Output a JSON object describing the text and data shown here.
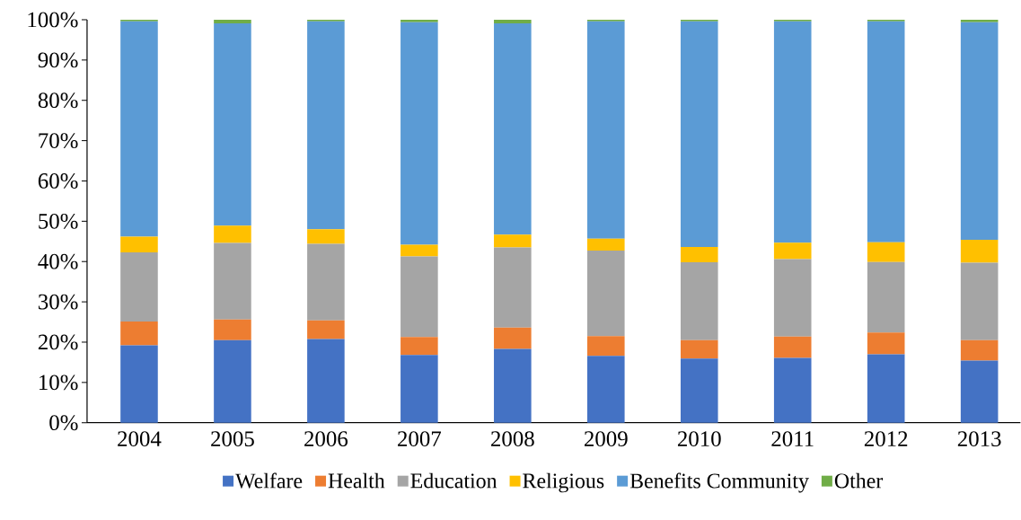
{
  "chart_data": {
    "type": "bar",
    "stacked": true,
    "legend": "bottom",
    "categories": [
      "2004",
      "2005",
      "2006",
      "2007",
      "2008",
      "2009",
      "2010",
      "2011",
      "2012",
      "2013"
    ],
    "ylim": [
      0,
      100
    ],
    "yticks": [
      {
        "value": 0,
        "label": "0%"
      },
      {
        "value": 10,
        "label": "10%"
      },
      {
        "value": 20,
        "label": "20%"
      },
      {
        "value": 30,
        "label": "30%"
      },
      {
        "value": 40,
        "label": "40%"
      },
      {
        "value": 50,
        "label": "50%"
      },
      {
        "value": 60,
        "label": "60%"
      },
      {
        "value": 70,
        "label": "70%"
      },
      {
        "value": 80,
        "label": "80%"
      },
      {
        "value": 90,
        "label": "90%"
      },
      {
        "value": 100,
        "label": "100%"
      }
    ],
    "series": [
      {
        "name": "Welfare",
        "color": "#4472c4",
        "values": [
          19.2,
          20.5,
          20.8,
          16.8,
          18.3,
          16.6,
          15.9,
          16.1,
          17.0,
          15.4
        ]
      },
      {
        "name": "Health",
        "color": "#ed7d31",
        "values": [
          5.9,
          5.1,
          4.6,
          4.5,
          5.3,
          4.9,
          4.6,
          5.3,
          5.4,
          5.1
        ]
      },
      {
        "name": "Education",
        "color": "#a5a5a5",
        "values": [
          17.2,
          19.0,
          19.0,
          20.0,
          19.9,
          21.2,
          19.3,
          19.2,
          17.5,
          19.2
        ]
      },
      {
        "name": "Religious",
        "color": "#ffc000",
        "values": [
          3.9,
          4.3,
          3.6,
          2.9,
          3.2,
          3.0,
          3.8,
          4.1,
          4.9,
          5.7
        ]
      },
      {
        "name": "Benefits Community",
        "color": "#5b9bd5",
        "values": [
          53.4,
          50.2,
          51.6,
          55.2,
          52.4,
          53.9,
          56.0,
          54.9,
          54.8,
          54.0
        ]
      },
      {
        "name": "Other",
        "color": "#70ad47",
        "values": [
          0.4,
          0.9,
          0.4,
          0.6,
          0.9,
          0.4,
          0.4,
          0.4,
          0.4,
          0.6
        ]
      }
    ]
  }
}
